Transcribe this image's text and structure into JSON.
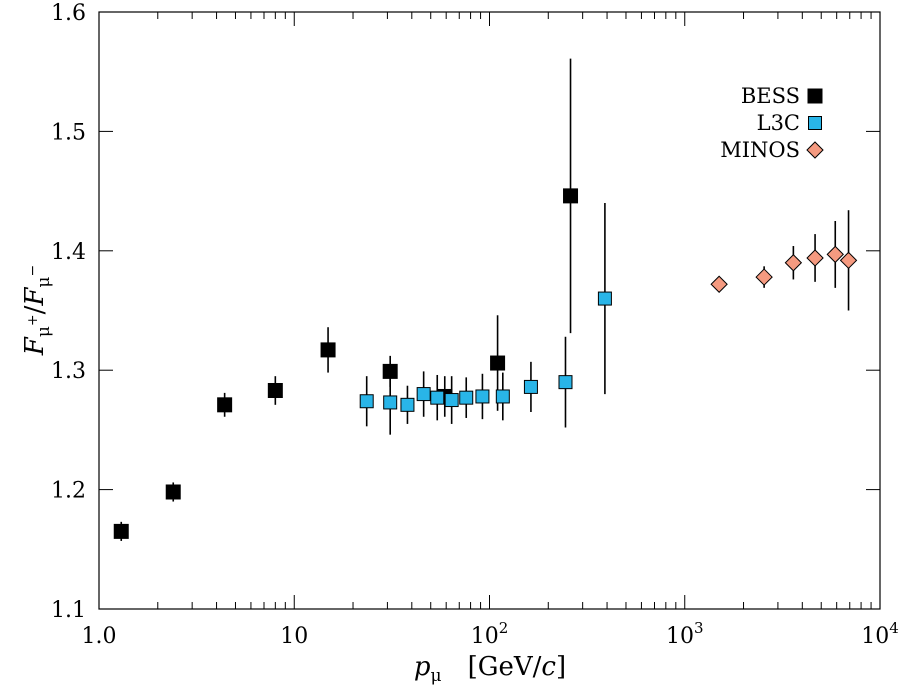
{
  "chart_data": {
    "type": "scatter",
    "x_axis": {
      "scale": "log",
      "range": [
        1,
        10000
      ],
      "ticks": [
        {
          "value": 1,
          "label": "1.0"
        },
        {
          "value": 10,
          "label": "10"
        },
        {
          "value": 100,
          "label": "10",
          "sup": "2"
        },
        {
          "value": 1000,
          "label": "10",
          "sup": "3"
        },
        {
          "value": 10000,
          "label": "10",
          "sup": "4"
        }
      ],
      "label": "p",
      "label_sub": "μ",
      "label_units": "[GeV/c]"
    },
    "y_axis": {
      "scale": "linear",
      "range": [
        1.1,
        1.6
      ],
      "ticks": [
        "1.1",
        "1.2",
        "1.3",
        "1.4",
        "1.5",
        "1.6"
      ],
      "label": "Fμ+/Fμ−"
    },
    "legend_position": "top-right",
    "series": [
      {
        "name": "BESS",
        "marker": "square",
        "color": "#000000",
        "points": [
          {
            "x": 1.3,
            "y": 1.165,
            "err": 0.008
          },
          {
            "x": 2.4,
            "y": 1.198,
            "err": 0.008
          },
          {
            "x": 4.4,
            "y": 1.271,
            "err": 0.01
          },
          {
            "x": 8.0,
            "y": 1.283,
            "err": 0.012
          },
          {
            "x": 14.9,
            "y": 1.317,
            "err": 0.019
          },
          {
            "x": 31.0,
            "y": 1.299,
            "err": 0.013
          },
          {
            "x": 59.0,
            "y": 1.278,
            "err": 0.017
          },
          {
            "x": 110.0,
            "y": 1.306,
            "err": 0.04
          },
          {
            "x": 260.0,
            "y": 1.446,
            "err": 0.115
          }
        ]
      },
      {
        "name": "L3C",
        "marker": "square",
        "color": "#29b5e8",
        "points": [
          {
            "x": 23.5,
            "y": 1.274,
            "err": 0.021
          },
          {
            "x": 31.0,
            "y": 1.273,
            "err": 0.027
          },
          {
            "x": 38.0,
            "y": 1.271,
            "err": 0.016
          },
          {
            "x": 46.0,
            "y": 1.28,
            "err": 0.019
          },
          {
            "x": 54.0,
            "y": 1.277,
            "err": 0.019
          },
          {
            "x": 64.0,
            "y": 1.275,
            "err": 0.02
          },
          {
            "x": 76.0,
            "y": 1.277,
            "err": 0.017
          },
          {
            "x": 92.0,
            "y": 1.278,
            "err": 0.019
          },
          {
            "x": 117.0,
            "y": 1.278,
            "err": 0.02
          },
          {
            "x": 163.0,
            "y": 1.286,
            "err": 0.021
          },
          {
            "x": 245.0,
            "y": 1.29,
            "err": 0.038
          },
          {
            "x": 390.0,
            "y": 1.36,
            "err": 0.08
          }
        ]
      },
      {
        "name": "MINOS",
        "marker": "diamond",
        "color": "#f59a80",
        "points": [
          {
            "x": 1500.0,
            "y": 1.372,
            "err": 0.004
          },
          {
            "x": 2550.0,
            "y": 1.378,
            "err": 0.009
          },
          {
            "x": 3600.0,
            "y": 1.39,
            "err": 0.014
          },
          {
            "x": 4650.0,
            "y": 1.394,
            "err": 0.02
          },
          {
            "x": 5900.0,
            "y": 1.397,
            "err": 0.028
          },
          {
            "x": 6900.0,
            "y": 1.392,
            "err": 0.042
          }
        ]
      }
    ]
  }
}
